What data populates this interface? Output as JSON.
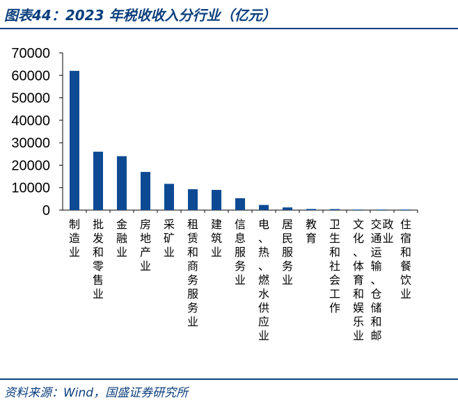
{
  "header": {
    "title": "图表44：2023 年税收收入分行业（亿元）"
  },
  "footer": {
    "source": "资料来源：Wind，国盛证券研究所"
  },
  "colors": {
    "brand": "#0b3f7d",
    "bar": "#0d4a93",
    "axis": "#000000"
  },
  "chart_data": {
    "type": "bar",
    "categories": [
      "制造业",
      "批发和零售业",
      "金融业",
      "房地产业",
      "采矿业",
      "租赁和商务服务业",
      "建筑业",
      "信息服务业",
      "电、热、燃水供应业",
      "居民服务业",
      "教育",
      "卫生和社会工作",
      "文化、体育和娱乐业",
      "交通运输、仓储和邮政业",
      "住宿和餐饮业"
    ],
    "values": [
      62000,
      26000,
      24000,
      17000,
      11700,
      9300,
      9000,
      5300,
      2300,
      1200,
      500,
      450,
      100,
      80,
      60
    ],
    "ylim": [
      0,
      70000
    ],
    "yticks": [
      "0",
      "10000",
      "20000",
      "30000",
      "40000",
      "50000",
      "60000",
      "70000"
    ],
    "title": "",
    "xlabel": "",
    "ylabel": "",
    "grid": false
  }
}
